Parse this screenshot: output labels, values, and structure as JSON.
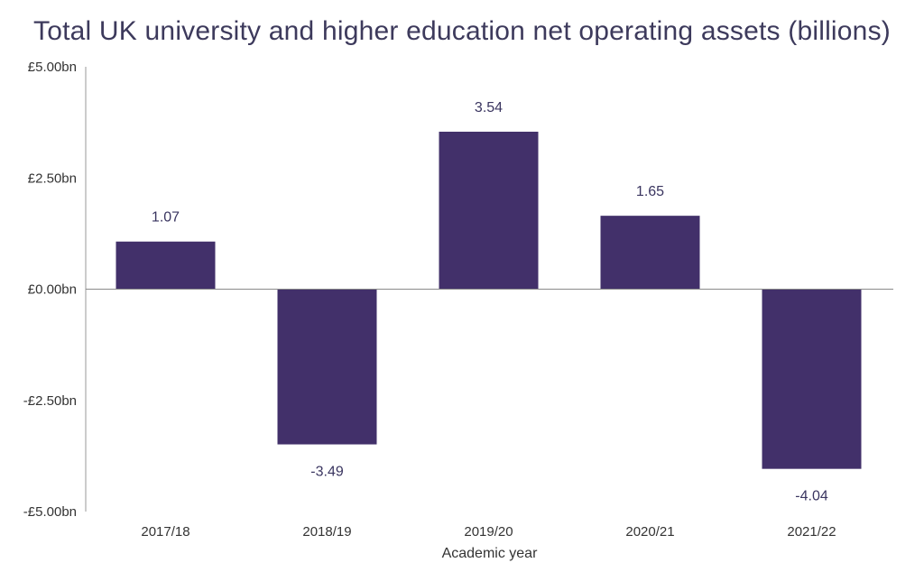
{
  "chart_data": {
    "type": "bar",
    "title": "Total UK university and higher education net operating assets (billions)",
    "xlabel": "Academic year",
    "ylabel": "",
    "categories": [
      "2017/18",
      "2018/19",
      "2019/20",
      "2020/21",
      "2021/22"
    ],
    "values": [
      1.07,
      -3.49,
      3.54,
      1.65,
      -4.04
    ],
    "data_labels": [
      "1.07",
      "-3.49",
      "3.54",
      "1.65",
      "-4.04"
    ],
    "ylim": [
      -5,
      5
    ],
    "yticks": [
      5,
      2.5,
      0,
      -2.5,
      -5
    ],
    "ytick_labels": [
      "£5.00bn",
      "£2.50bn",
      "£0.00bn",
      "-£2.50bn",
      "-£5.00bn"
    ],
    "grid": false,
    "legend": "none",
    "bar_color": "#42306a"
  }
}
